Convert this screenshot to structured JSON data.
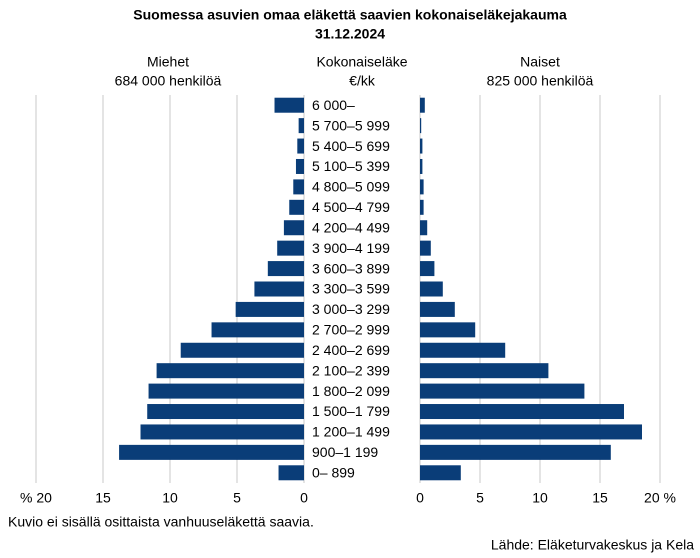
{
  "chart_data": {
    "type": "pyramid",
    "title": "Suomessa asuvien omaa eläkettä saavien kokonaiseläkejakauma",
    "subtitle": "31.12.2024",
    "category_title": "Kokonaiseläke",
    "category_unit": "€/kk",
    "categories": [
      "6 000–",
      "5 700–5 999",
      "5 400–5 699",
      "5 100–5 399",
      "4 800–5 099",
      "4 500–4 799",
      "4 200–4 499",
      "3 900–4 199",
      "3 600–3 899",
      "3 300–3 599",
      "3 000–3 299",
      "2 700–2 999",
      "2 400–2 699",
      "2 100–2 399",
      "1 800–2 099",
      "1 500–1 799",
      "1 200–1 499",
      "900–1 199",
      "0– 899"
    ],
    "series": [
      {
        "name": "Miehet",
        "count_label": "684 000 henkilöä",
        "color": "#0a3d78",
        "side": "left",
        "values": [
          2.2,
          0.4,
          0.5,
          0.6,
          0.8,
          1.1,
          1.5,
          2.0,
          2.7,
          3.7,
          5.1,
          6.9,
          9.2,
          11.0,
          11.6,
          11.7,
          12.2,
          13.8,
          1.9
        ],
        "xlim": [
          0,
          20
        ],
        "xticks": [
          {
            "value": 20,
            "label": "% 20"
          },
          15,
          10,
          5,
          0
        ]
      },
      {
        "name": "Naiset",
        "count_label": "825 000 henkilöä",
        "color": "#0a3d78",
        "side": "right",
        "values": [
          0.4,
          0.1,
          0.2,
          0.2,
          0.3,
          0.3,
          0.6,
          0.9,
          1.2,
          1.9,
          2.9,
          4.6,
          7.1,
          10.7,
          13.7,
          17.0,
          18.5,
          15.9,
          3.4
        ],
        "xlim": [
          0,
          20
        ],
        "xticks": [
          0,
          5,
          10,
          15,
          {
            "value": 20,
            "label": "20 %"
          }
        ]
      }
    ],
    "grid": true,
    "note": "Kuvio ei sisällä osittaista vanhuuseläkettä saavia.",
    "source": "Lähde: Eläketurvakeskus ja Kela"
  }
}
